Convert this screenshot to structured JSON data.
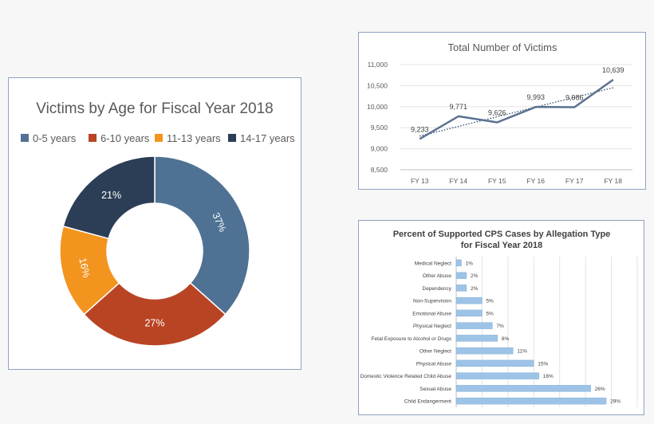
{
  "chart_data": [
    {
      "type": "pie",
      "title": "Victims by Age for Fiscal Year 2018",
      "legend_position": "top",
      "categories": [
        "0-5 years",
        "6-10 years",
        "11-13 years",
        "14-17 years"
      ],
      "values": [
        37,
        27,
        16,
        21
      ],
      "labels": [
        "37%",
        "27%",
        "16%",
        "21%"
      ],
      "colors": [
        "#4f7294",
        "#b94424",
        "#f2941e",
        "#2c3e56"
      ]
    },
    {
      "type": "line",
      "title": "Total Number of Victims",
      "categories": [
        "FY 13",
        "FY 14",
        "FY 15",
        "FY 16",
        "FY 17",
        "FY 18"
      ],
      "values": [
        9233,
        9771,
        9626,
        9993,
        9986,
        10639
      ],
      "labels": [
        "9,233",
        "9,771",
        "9,626",
        "9,993",
        "9,986",
        "10,639"
      ],
      "ylim": [
        8500,
        11000
      ],
      "yticks": [
        8500,
        9000,
        9500,
        10000,
        10500,
        11000
      ],
      "ytick_labels": [
        "8,500",
        "9,000",
        "9,500",
        "10,000",
        "10,500",
        "11,000"
      ],
      "trendline": "linear",
      "grid": true,
      "color": "#5b7291"
    },
    {
      "type": "bar",
      "orientation": "horizontal",
      "title": "Percent of Supported CPS Cases by Allegation Type for Fiscal Year 2018",
      "title_lines": [
        "Percent of Supported CPS Cases by Allegation Type",
        "for Fiscal Year 2018"
      ],
      "categories": [
        "Medical Neglect",
        "Other Abuse",
        "Dependency",
        "Non-Supervision",
        "Emotional Abuse",
        "Physical Neglect",
        "Fetal Exposure to Alcohol or Drugs",
        "Other Neglect",
        "Physical Abuse",
        "Domestic Violence Related Child Abuse",
        "Sexual Abuse",
        "Child Endangerment"
      ],
      "values": [
        1,
        2,
        2,
        5,
        5,
        7,
        8,
        11,
        15,
        16,
        26,
        29
      ],
      "labels": [
        "1%",
        "2%",
        "2%",
        "5%",
        "5%",
        "7%",
        "8%",
        "11%",
        "15%",
        "16%",
        "26%",
        "29%"
      ],
      "xlim": [
        0,
        35
      ],
      "grid": true,
      "color": "#9dc3e6"
    }
  ]
}
